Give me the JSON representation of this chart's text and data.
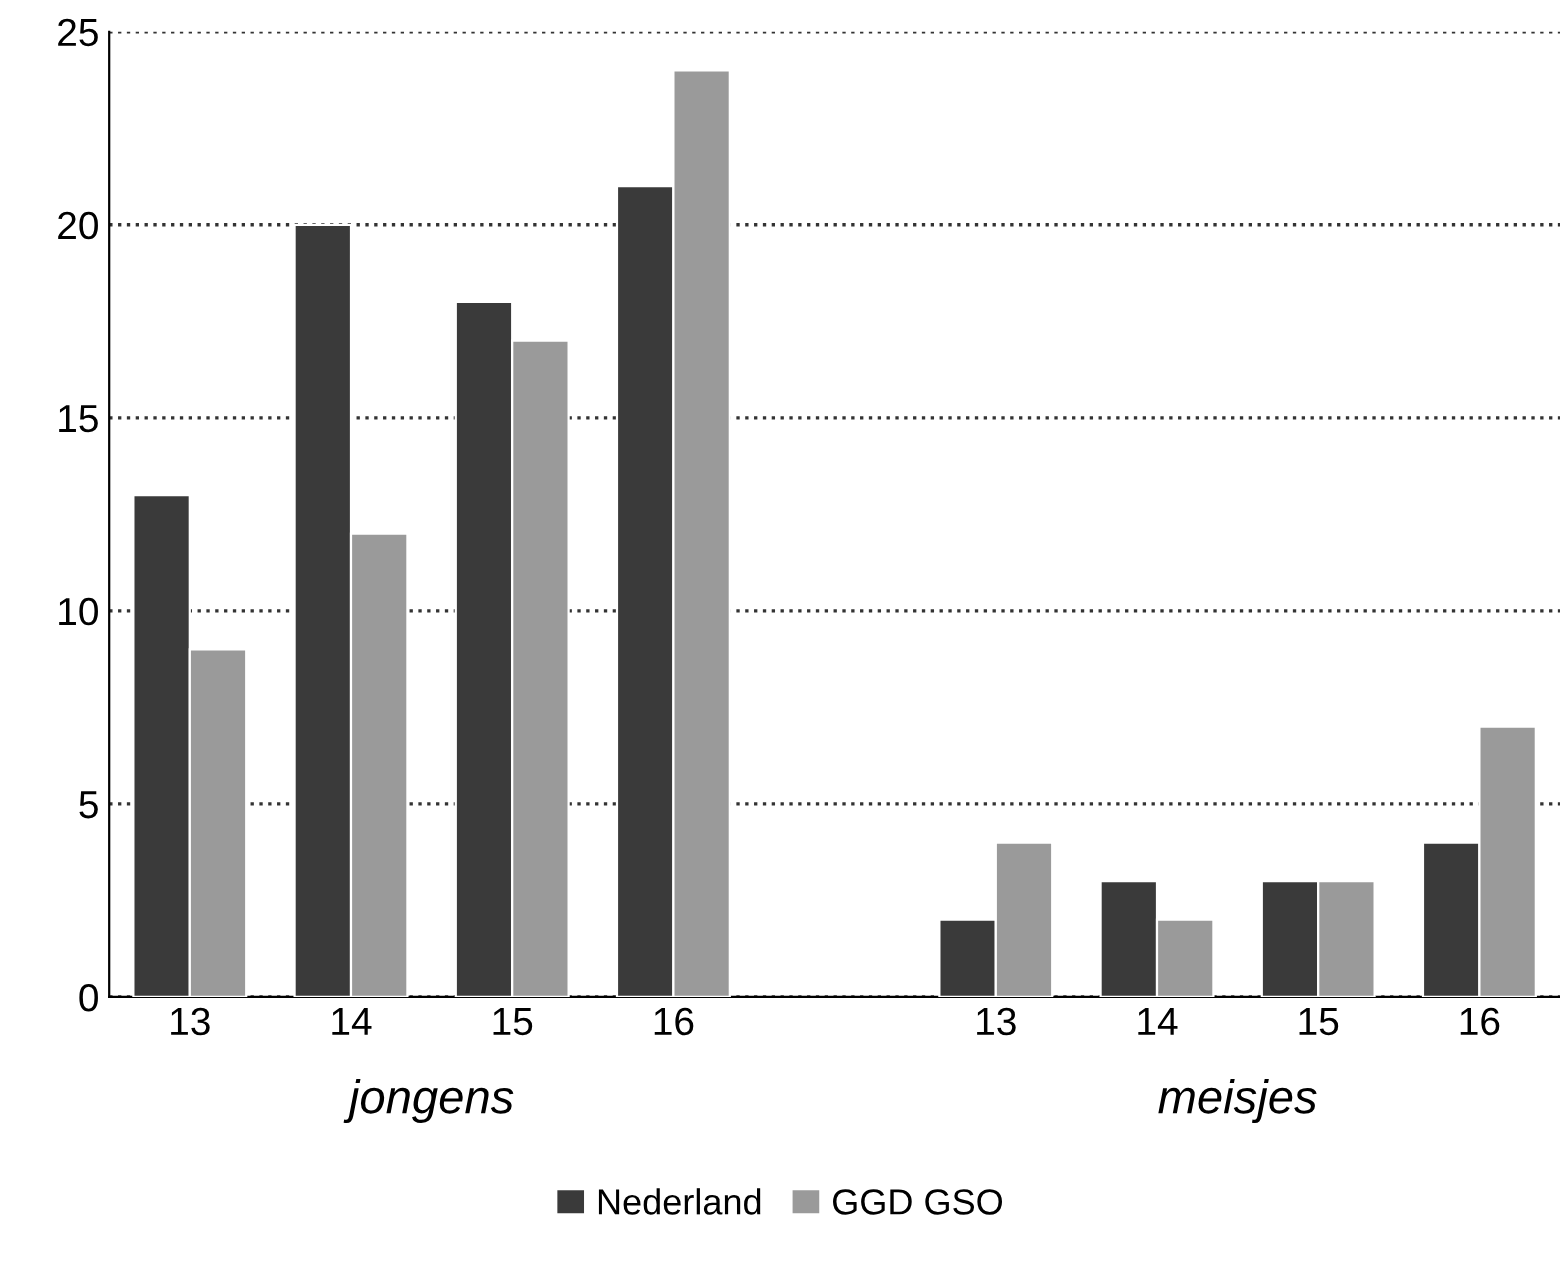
{
  "chart_data": {
    "type": "bar",
    "categories": [
      "13",
      "14",
      "15",
      "16",
      null,
      "13",
      "14",
      "15",
      "16"
    ],
    "series": [
      {
        "name": "Nederland",
        "color": "#3a3a3a",
        "values": [
          13,
          20,
          18,
          21,
          null,
          2,
          3,
          3,
          4
        ]
      },
      {
        "name": "GGD GSO",
        "color": "#9a9a9a",
        "values": [
          9,
          12,
          17,
          24,
          null,
          4,
          2,
          3,
          7
        ]
      }
    ],
    "annotations": [
      "jongens",
      "meisjes"
    ],
    "ylim": [
      0,
      25
    ],
    "yticks": [
      0,
      5,
      10,
      15,
      20,
      25
    ],
    "grid": "y",
    "legend": "bottom"
  }
}
